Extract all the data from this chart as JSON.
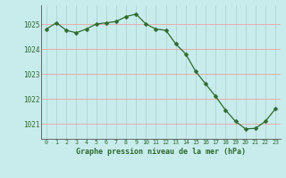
{
  "x": [
    0,
    1,
    2,
    3,
    4,
    5,
    6,
    7,
    8,
    9,
    10,
    11,
    12,
    13,
    14,
    15,
    16,
    17,
    18,
    19,
    20,
    21,
    22,
    23
  ],
  "y": [
    1024.8,
    1025.05,
    1024.75,
    1024.65,
    1024.8,
    1025.0,
    1025.05,
    1025.1,
    1025.3,
    1025.4,
    1025.0,
    1024.8,
    1024.75,
    1024.2,
    1023.8,
    1023.1,
    1022.6,
    1022.1,
    1021.55,
    1021.1,
    1020.8,
    1020.82,
    1021.1,
    1021.6
  ],
  "line_color": "#2d6a2d",
  "marker_color": "#2d6a2d",
  "bg_color": "#c8ecec",
  "grid_color_v": "#b0d4d4",
  "grid_color_h": "#f0a0a0",
  "axis_label_color": "#2d6a2d",
  "tick_label_color": "#2d6a2d",
  "xlabel": "Graphe pression niveau de la mer (hPa)",
  "ylim": [
    1020.4,
    1025.75
  ],
  "yticks": [
    1021,
    1022,
    1023,
    1024,
    1025
  ],
  "xticks": [
    0,
    1,
    2,
    3,
    4,
    5,
    6,
    7,
    8,
    9,
    10,
    11,
    12,
    13,
    14,
    15,
    16,
    17,
    18,
    19,
    20,
    21,
    22,
    23
  ]
}
